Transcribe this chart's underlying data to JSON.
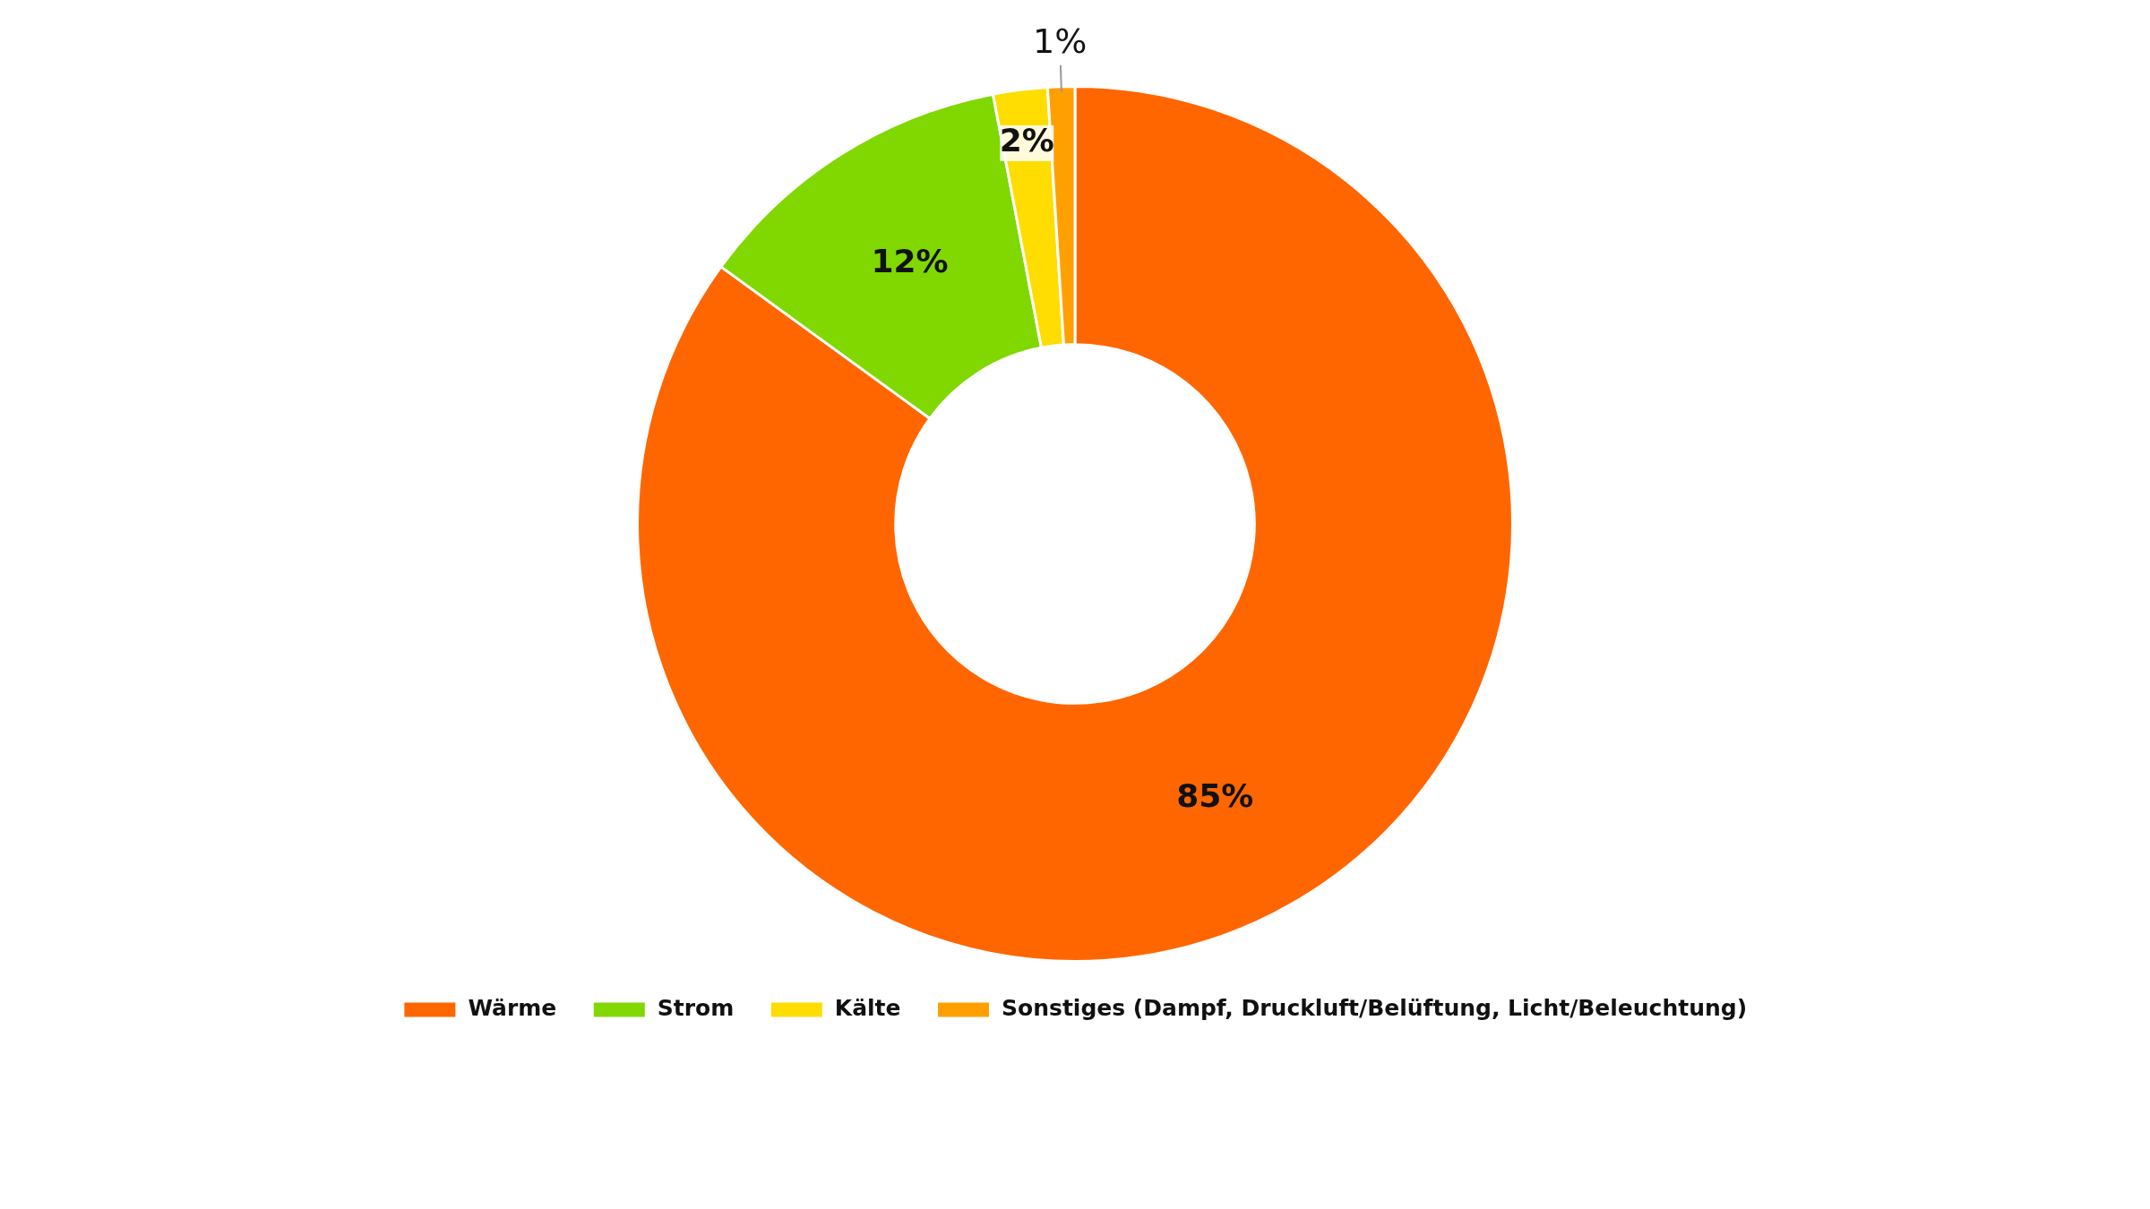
{
  "chart_data": {
    "type": "donut",
    "categories": [
      "Wärme",
      "Strom",
      "Kälte",
      "Sonstiges (Dampf, Druckluft/Belüftung, Licht/Beleuchtung)"
    ],
    "values": [
      85,
      12,
      2,
      1
    ],
    "colors": [
      "#ff6600",
      "#80d800",
      "#ffdd00",
      "#ffa000"
    ],
    "value_labels": [
      "85%",
      "12%",
      "2%",
      "1%"
    ],
    "legend": "bottom"
  }
}
